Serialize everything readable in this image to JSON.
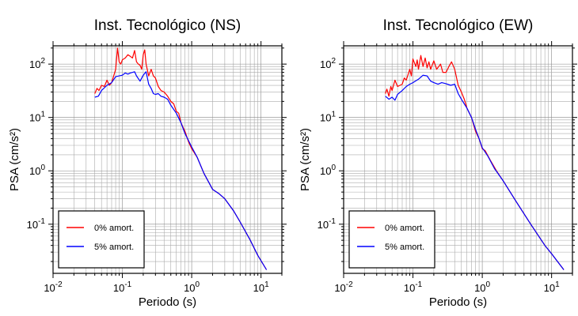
{
  "chart_data": [
    {
      "type": "line",
      "title": "Inst. Tecnológico (NS)",
      "xlabel": "Periodo (s)",
      "ylabel": "PSA (cm/s²)",
      "x_scale": "log",
      "y_scale": "log",
      "xlim": [
        0.01,
        20
      ],
      "ylim": [
        0.012,
        220
      ],
      "x_ticks": [
        "10^-2",
        "10^-1",
        "10^0",
        "10^1"
      ],
      "y_ticks": [
        "10^2",
        "10^1",
        "10^0",
        "10^-1"
      ],
      "grid": true,
      "legend_position": "bottom-left",
      "series": [
        {
          "name": "0% amort.",
          "color": "#ff0000",
          "points": [
            [
              0.04,
              28
            ],
            [
              0.043,
              35
            ],
            [
              0.046,
              32
            ],
            [
              0.05,
              40
            ],
            [
              0.055,
              38
            ],
            [
              0.06,
              50
            ],
            [
              0.065,
              40
            ],
            [
              0.07,
              45
            ],
            [
              0.075,
              60
            ],
            [
              0.08,
              80
            ],
            [
              0.085,
              200
            ],
            [
              0.09,
              110
            ],
            [
              0.095,
              100
            ],
            [
              0.1,
              120
            ],
            [
              0.11,
              130
            ],
            [
              0.12,
              150
            ],
            [
              0.13,
              140
            ],
            [
              0.14,
              130
            ],
            [
              0.15,
              180
            ],
            [
              0.16,
              110
            ],
            [
              0.17,
              100
            ],
            [
              0.18,
              95
            ],
            [
              0.19,
              80
            ],
            [
              0.2,
              150
            ],
            [
              0.21,
              185
            ],
            [
              0.22,
              100
            ],
            [
              0.24,
              60
            ],
            [
              0.26,
              80
            ],
            [
              0.28,
              60
            ],
            [
              0.3,
              55
            ],
            [
              0.33,
              38
            ],
            [
              0.36,
              32
            ],
            [
              0.4,
              30
            ],
            [
              0.45,
              25
            ],
            [
              0.5,
              20
            ],
            [
              0.55,
              18
            ],
            [
              0.6,
              13
            ],
            [
              0.65,
              12
            ],
            [
              0.7,
              8
            ],
            [
              0.8,
              5.5
            ],
            [
              0.9,
              3.5
            ],
            [
              1.0,
              2.6
            ],
            [
              1.2,
              1.8
            ],
            [
              1.5,
              0.9
            ],
            [
              2.0,
              0.45
            ],
            [
              2.5,
              0.37
            ],
            [
              3.0,
              0.3
            ],
            [
              4.0,
              0.18
            ],
            [
              5.0,
              0.11
            ],
            [
              7.0,
              0.05
            ],
            [
              9.0,
              0.026
            ],
            [
              12.0,
              0.014
            ]
          ]
        },
        {
          "name": "5% amort.",
          "color": "#0000ff",
          "points": [
            [
              0.04,
              24
            ],
            [
              0.045,
              25
            ],
            [
              0.05,
              32
            ],
            [
              0.06,
              40
            ],
            [
              0.07,
              45
            ],
            [
              0.08,
              58
            ],
            [
              0.09,
              60
            ],
            [
              0.1,
              62
            ],
            [
              0.11,
              68
            ],
            [
              0.12,
              65
            ],
            [
              0.13,
              68
            ],
            [
              0.15,
              72
            ],
            [
              0.16,
              60
            ],
            [
              0.18,
              48
            ],
            [
              0.2,
              62
            ],
            [
              0.22,
              72
            ],
            [
              0.24,
              42
            ],
            [
              0.26,
              35
            ],
            [
              0.28,
              28
            ],
            [
              0.3,
              27
            ],
            [
              0.33,
              28
            ],
            [
              0.36,
              25
            ],
            [
              0.4,
              24
            ],
            [
              0.45,
              22
            ],
            [
              0.5,
              17
            ],
            [
              0.6,
              12
            ],
            [
              0.7,
              8
            ],
            [
              0.8,
              5
            ],
            [
              1.0,
              2.8
            ],
            [
              1.2,
              1.8
            ],
            [
              1.5,
              0.9
            ],
            [
              2.0,
              0.45
            ],
            [
              2.5,
              0.37
            ],
            [
              3.0,
              0.3
            ],
            [
              4.0,
              0.18
            ],
            [
              5.0,
              0.11
            ],
            [
              7.0,
              0.05
            ],
            [
              9.0,
              0.026
            ],
            [
              12.0,
              0.014
            ]
          ]
        }
      ]
    },
    {
      "type": "line",
      "title": "Inst. Tecnológico (EW)",
      "xlabel": "Periodo (s)",
      "ylabel": "PSA (cm/s²)",
      "x_scale": "log",
      "y_scale": "log",
      "xlim": [
        0.01,
        20
      ],
      "ylim": [
        0.012,
        220
      ],
      "x_ticks": [
        "10^-2",
        "10^-1",
        "10^0",
        "10^1"
      ],
      "y_ticks": [
        "10^2",
        "10^1",
        "10^0",
        "10^-1"
      ],
      "grid": true,
      "legend_position": "bottom-left",
      "series": [
        {
          "name": "0% amort.",
          "color": "#ff0000",
          "points": [
            [
              0.04,
              28
            ],
            [
              0.042,
              34
            ],
            [
              0.045,
              25
            ],
            [
              0.048,
              38
            ],
            [
              0.05,
              32
            ],
            [
              0.055,
              50
            ],
            [
              0.06,
              38
            ],
            [
              0.065,
              40
            ],
            [
              0.07,
              42
            ],
            [
              0.075,
              55
            ],
            [
              0.08,
              50
            ],
            [
              0.09,
              80
            ],
            [
              0.095,
              60
            ],
            [
              0.1,
              125
            ],
            [
              0.11,
              90
            ],
            [
              0.115,
              120
            ],
            [
              0.12,
              80
            ],
            [
              0.13,
              145
            ],
            [
              0.14,
              90
            ],
            [
              0.15,
              130
            ],
            [
              0.16,
              85
            ],
            [
              0.17,
              110
            ],
            [
              0.18,
              80
            ],
            [
              0.2,
              115
            ],
            [
              0.22,
              80
            ],
            [
              0.25,
              100
            ],
            [
              0.27,
              70
            ],
            [
              0.3,
              70
            ],
            [
              0.33,
              90
            ],
            [
              0.36,
              110
            ],
            [
              0.4,
              80
            ],
            [
              0.45,
              40
            ],
            [
              0.5,
              30
            ],
            [
              0.55,
              22
            ],
            [
              0.6,
              15
            ],
            [
              0.7,
              10
            ],
            [
              0.8,
              5.5
            ],
            [
              0.9,
              4.0
            ],
            [
              1.0,
              2.6
            ],
            [
              1.1,
              2.4
            ],
            [
              1.3,
              1.6
            ],
            [
              1.6,
              1.0
            ],
            [
              2.0,
              0.65
            ],
            [
              3.0,
              0.28
            ],
            [
              5.0,
              0.1
            ],
            [
              8.0,
              0.04
            ],
            [
              10.0,
              0.028
            ],
            [
              15.0,
              0.014
            ]
          ]
        },
        {
          "name": "5% amort.",
          "color": "#0000ff",
          "points": [
            [
              0.04,
              25
            ],
            [
              0.045,
              22
            ],
            [
              0.05,
              24
            ],
            [
              0.055,
              21
            ],
            [
              0.06,
              27
            ],
            [
              0.07,
              32
            ],
            [
              0.08,
              38
            ],
            [
              0.09,
              42
            ],
            [
              0.1,
              45
            ],
            [
              0.12,
              52
            ],
            [
              0.14,
              62
            ],
            [
              0.16,
              60
            ],
            [
              0.18,
              48
            ],
            [
              0.2,
              45
            ],
            [
              0.23,
              42
            ],
            [
              0.26,
              45
            ],
            [
              0.3,
              43
            ],
            [
              0.35,
              40
            ],
            [
              0.4,
              42
            ],
            [
              0.45,
              28
            ],
            [
              0.5,
              22
            ],
            [
              0.6,
              15
            ],
            [
              0.7,
              10
            ],
            [
              0.8,
              6.0
            ],
            [
              0.9,
              4.0
            ],
            [
              1.0,
              2.7
            ],
            [
              1.2,
              1.9
            ],
            [
              1.5,
              1.1
            ],
            [
              2.0,
              0.65
            ],
            [
              3.0,
              0.28
            ],
            [
              5.0,
              0.1
            ],
            [
              8.0,
              0.04
            ],
            [
              10.0,
              0.028
            ],
            [
              15.0,
              0.014
            ]
          ]
        }
      ]
    }
  ]
}
